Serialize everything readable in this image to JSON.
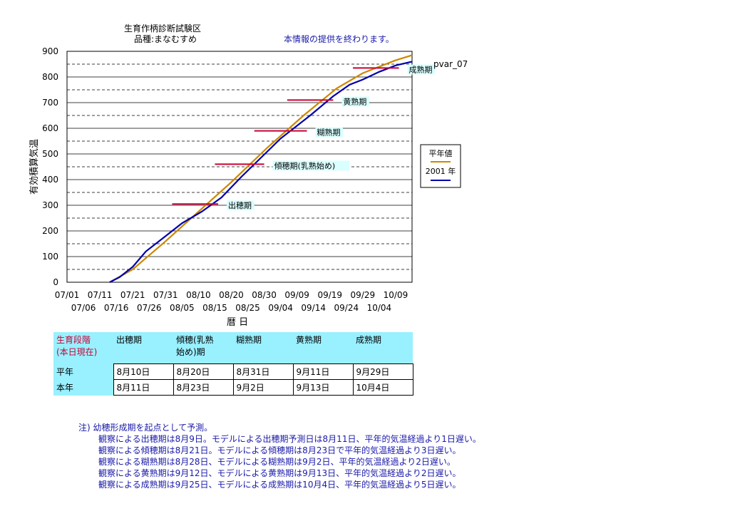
{
  "chart_data": {
    "type": "line",
    "title": "生育作柄診断試験区",
    "subtitle": "品種:まなむすめ",
    "notice": "本情報の提供を終わります。",
    "station": "pvar_07",
    "ylabel": "有効積算気温",
    "xlabel": "暦 日",
    "ylim": [
      0,
      900
    ],
    "yticks": [
      0,
      100,
      200,
      300,
      400,
      500,
      600,
      700,
      800,
      900
    ],
    "x_start": "07/01",
    "x_end": "10/14",
    "xticks_top": [
      "07/01",
      "07/11",
      "07/21",
      "07/31",
      "08/10",
      "08/20",
      "08/30",
      "09/09",
      "09/19",
      "09/29",
      "10/09"
    ],
    "xticks_bottom": [
      "07/06",
      "07/16",
      "07/26",
      "08/05",
      "08/15",
      "08/25",
      "09/04",
      "09/14",
      "09/24",
      "10/04"
    ],
    "grid": true,
    "legend": [
      "平年値",
      "2001 年"
    ],
    "series": [
      {
        "name": "平年値",
        "color": "#cc8800",
        "points": [
          [
            "07/14",
            0
          ],
          [
            "07/21",
            50
          ],
          [
            "07/31",
            160
          ],
          [
            "08/10",
            275
          ],
          [
            "08/20",
            390
          ],
          [
            "08/31",
            525
          ],
          [
            "09/11",
            650
          ],
          [
            "09/21",
            755
          ],
          [
            "09/29",
            815
          ],
          [
            "10/09",
            865
          ],
          [
            "10/14",
            885
          ]
        ]
      },
      {
        "name": "2001 年",
        "color": "#0000aa",
        "points": [
          [
            "07/14",
            0
          ],
          [
            "07/17",
            20
          ],
          [
            "07/21",
            60
          ],
          [
            "07/25",
            120
          ],
          [
            "07/31",
            180
          ],
          [
            "08/05",
            230
          ],
          [
            "08/11",
            275
          ],
          [
            "08/17",
            330
          ],
          [
            "08/23",
            410
          ],
          [
            "08/31",
            510
          ],
          [
            "09/04",
            560
          ],
          [
            "09/13",
            650
          ],
          [
            "09/20",
            725
          ],
          [
            "09/25",
            770
          ],
          [
            "09/29",
            790
          ],
          [
            "10/04",
            820
          ],
          [
            "10/09",
            845
          ],
          [
            "10/14",
            860
          ]
        ]
      }
    ],
    "stage_markers": [
      {
        "label": "出穂期",
        "value": 305,
        "from": "08/02",
        "to": "08/16"
      },
      {
        "label": "傾穂期(乳熟始め)",
        "value": 460,
        "from": "08/15",
        "to": "08/30"
      },
      {
        "label": "糊熟期",
        "value": 590,
        "from": "08/27",
        "to": "09/12"
      },
      {
        "label": "黄熟期",
        "value": 710,
        "from": "09/06",
        "to": "09/20"
      },
      {
        "label": "成熟期",
        "value": 835,
        "from": "09/26",
        "to": "10/10"
      }
    ],
    "line_colors": {
      "marker": "#cc0033",
      "marker_label_bg": "#d9ffff"
    }
  },
  "table": {
    "header_label": "生育段階\n(本日現在)",
    "stages": [
      "出穂期",
      "傾穂(乳熟\n始め)期",
      "糊熟期",
      "黄熟期",
      "成熟期"
    ],
    "rows": [
      {
        "label": "平年",
        "values": [
          "8月10日",
          "8月20日",
          "8月31日",
          "9月11日",
          "9月29日"
        ]
      },
      {
        "label": "本年",
        "values": [
          "8月11日",
          "8月23日",
          "9月2日",
          "9月13日",
          "10月4日"
        ]
      }
    ]
  },
  "notes": {
    "head": "注) 幼穂形成期を起点として予測。",
    "lines": [
      "観察による出穂期は8月9日。モデルによる出穂期予測日は8月11日、平年的気温経過より1日遅い。",
      "観察による傾穂期は8月21日。モデルによる傾穂期は8月23日で平年的気温経過より3日遅い。",
      "観察による糊熟期は8月28日、モデルによる糊熟期は9月2日、平年的気温経過より2日遅い。",
      "観察による黄熟期は9月12日、モデルによる黄熟期は9月13日、平年的気温経過より2日遅い。",
      "観察による成熟期は9月25日、モデルによる成熟期は10月4日、平年的気温経過より5日遅い。"
    ]
  }
}
